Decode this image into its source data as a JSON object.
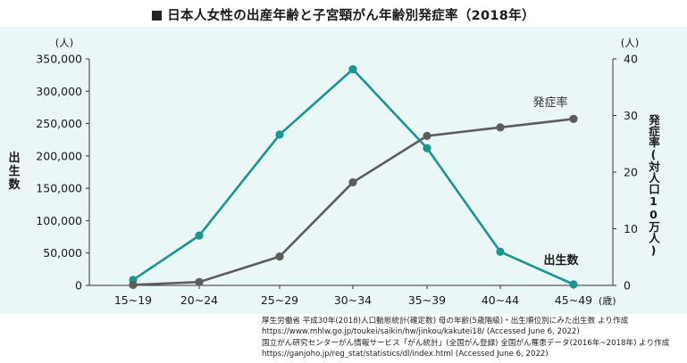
{
  "chart_data": {
    "type": "line",
    "title": "日本人女性の出産年齢と子宮頸がん年齢別発症率（2018年）",
    "categories": [
      "15~19",
      "20~24",
      "25~29",
      "30~34",
      "35~39",
      "40~44",
      "45~49"
    ],
    "x_unit": "(歳)",
    "y_left": {
      "label": "出生数",
      "unit": "(人)",
      "ticks": [
        "0",
        "50,000",
        "100,000",
        "150,000",
        "200,000",
        "250,000",
        "300,000",
        "350,000"
      ],
      "ylim": [
        0,
        350000
      ]
    },
    "y_right": {
      "label": "発症率(対人口10万人)",
      "unit": "(人)",
      "ticks": [
        "0",
        "10",
        "20",
        "30",
        "40"
      ],
      "ylim": [
        0,
        40
      ]
    },
    "series": [
      {
        "name": "出生数",
        "axis": "left",
        "color": "#1a9591",
        "values": [
          8500,
          77000,
          233000,
          334000,
          212000,
          52000,
          1600
        ]
      },
      {
        "name": "発症率",
        "axis": "right",
        "color": "#5c5c5c",
        "values": [
          0.1,
          0.6,
          5.1,
          18.2,
          26.4,
          27.9,
          29.4
        ]
      }
    ],
    "grid": false,
    "legend": "inline labels near line ends"
  },
  "source_lines": [
    "厚生労働省 平成30年(2018)人口動態統計(確定数) 母の年齢(5歳階級)・出生順位別にみた出生数 より作成",
    "https://www.mhlw.go.jp/toukei/saikin/hw/jinkou/kakutei18/ (Accessed June 6, 2022)",
    "国立がん研究センターがん情報サービス「がん統計」(全国がん登録) 全国がん罹患データ(2016年~2018年) より作成",
    "https://ganjoho.jp/reg_stat/statistics/dl/index.html (Accessed June 6, 2022)"
  ],
  "colors": {
    "panel_bg": "#ebf6f6",
    "teal": "#1a9591",
    "gray": "#5c5c5c"
  }
}
